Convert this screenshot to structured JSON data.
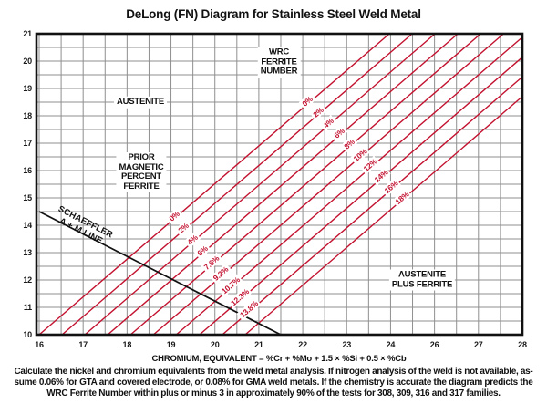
{
  "title": "DeLong (FN) Diagram for Stainless Steel Weld Metal",
  "chart_data": {
    "type": "line",
    "title": "DeLong (FN) Diagram for Stainless Steel Weld Metal",
    "x_axis": {
      "label": "CHROMIUM, EQUIVALENT = %Cr + %Mo + 1.5 × %Si + 0.5 × %Cb",
      "tick_labels": [
        "16",
        "17",
        "18",
        "19",
        "20",
        "21",
        "22",
        "23",
        "24",
        "26",
        "27",
        "28"
      ],
      "note": "tick labels as printed on the original; the value 25 is skipped",
      "range_printed": [
        16,
        28
      ]
    },
    "y_axis": {
      "tick_labels": [
        "21",
        "20",
        "19",
        "18",
        "17",
        "16",
        "15",
        "14",
        "13",
        "12",
        "11",
        "10"
      ],
      "range": [
        10,
        21
      ]
    },
    "grid": {
      "shown": true,
      "step_units": 0.5
    },
    "ferrite_lines": {
      "wrc_ferrite_number_labels": [
        "0%",
        "2%",
        "4%",
        "6%",
        "8%",
        "10%",
        "12%",
        "14%",
        "16%",
        "18%"
      ],
      "prior_magnetic_percent_ferrite_labels": [
        "0%",
        "2%",
        "4%",
        "6%",
        "7.6%",
        "9.2%",
        "10.7%",
        "12.3%",
        "13.8%"
      ],
      "cr_eq_at_ni_eq_10": [
        16.0,
        16.52,
        17.04,
        17.56,
        18.08,
        18.6,
        19.12,
        19.65,
        20.17,
        20.69
      ],
      "slope_ni_per_cr_eq": 1.38
    },
    "schaeffler_line": {
      "label_lines": [
        "SCHAEFFLER",
        "A + M LINE"
      ],
      "endpoints": [
        {
          "cr_eq": 16,
          "ni_eq": 14.5
        },
        {
          "cr_eq": 21.5,
          "ni_eq": 10
        }
      ]
    },
    "regions": {
      "austenite": [
        "AUSTENITE"
      ],
      "wrc_ferrite_number": [
        "WRC",
        "FERRITE",
        "NUMBER"
      ],
      "prior_magnetic_percent_ferrite": [
        "PRIOR",
        "MAGNETIC",
        "PERCENT",
        "FERRITE"
      ],
      "austenite_plus_ferrite": [
        "AUSTENITE",
        "PLUS FERRITE"
      ]
    }
  },
  "caption": {
    "lines": [
      "Calculate the nickel and chromium equivalents from the weld metal analysis. If nitrogen analysis of the weld is not available, as-",
      "sume 0.06% for GTA and covered electrode, or 0.08% for GMA weld metals. If the chemistry is accurate the diagram predicts the",
      "WRC Ferrite Number within plus or minus 3 in approximately 90% of the tests for 308, 309, 316 and 317 families."
    ]
  },
  "colors": {
    "ferrite_line_red": "#c31230",
    "grid_gray": "#8f8f8f",
    "ink_black": "#111111",
    "background": "#ffffff"
  }
}
